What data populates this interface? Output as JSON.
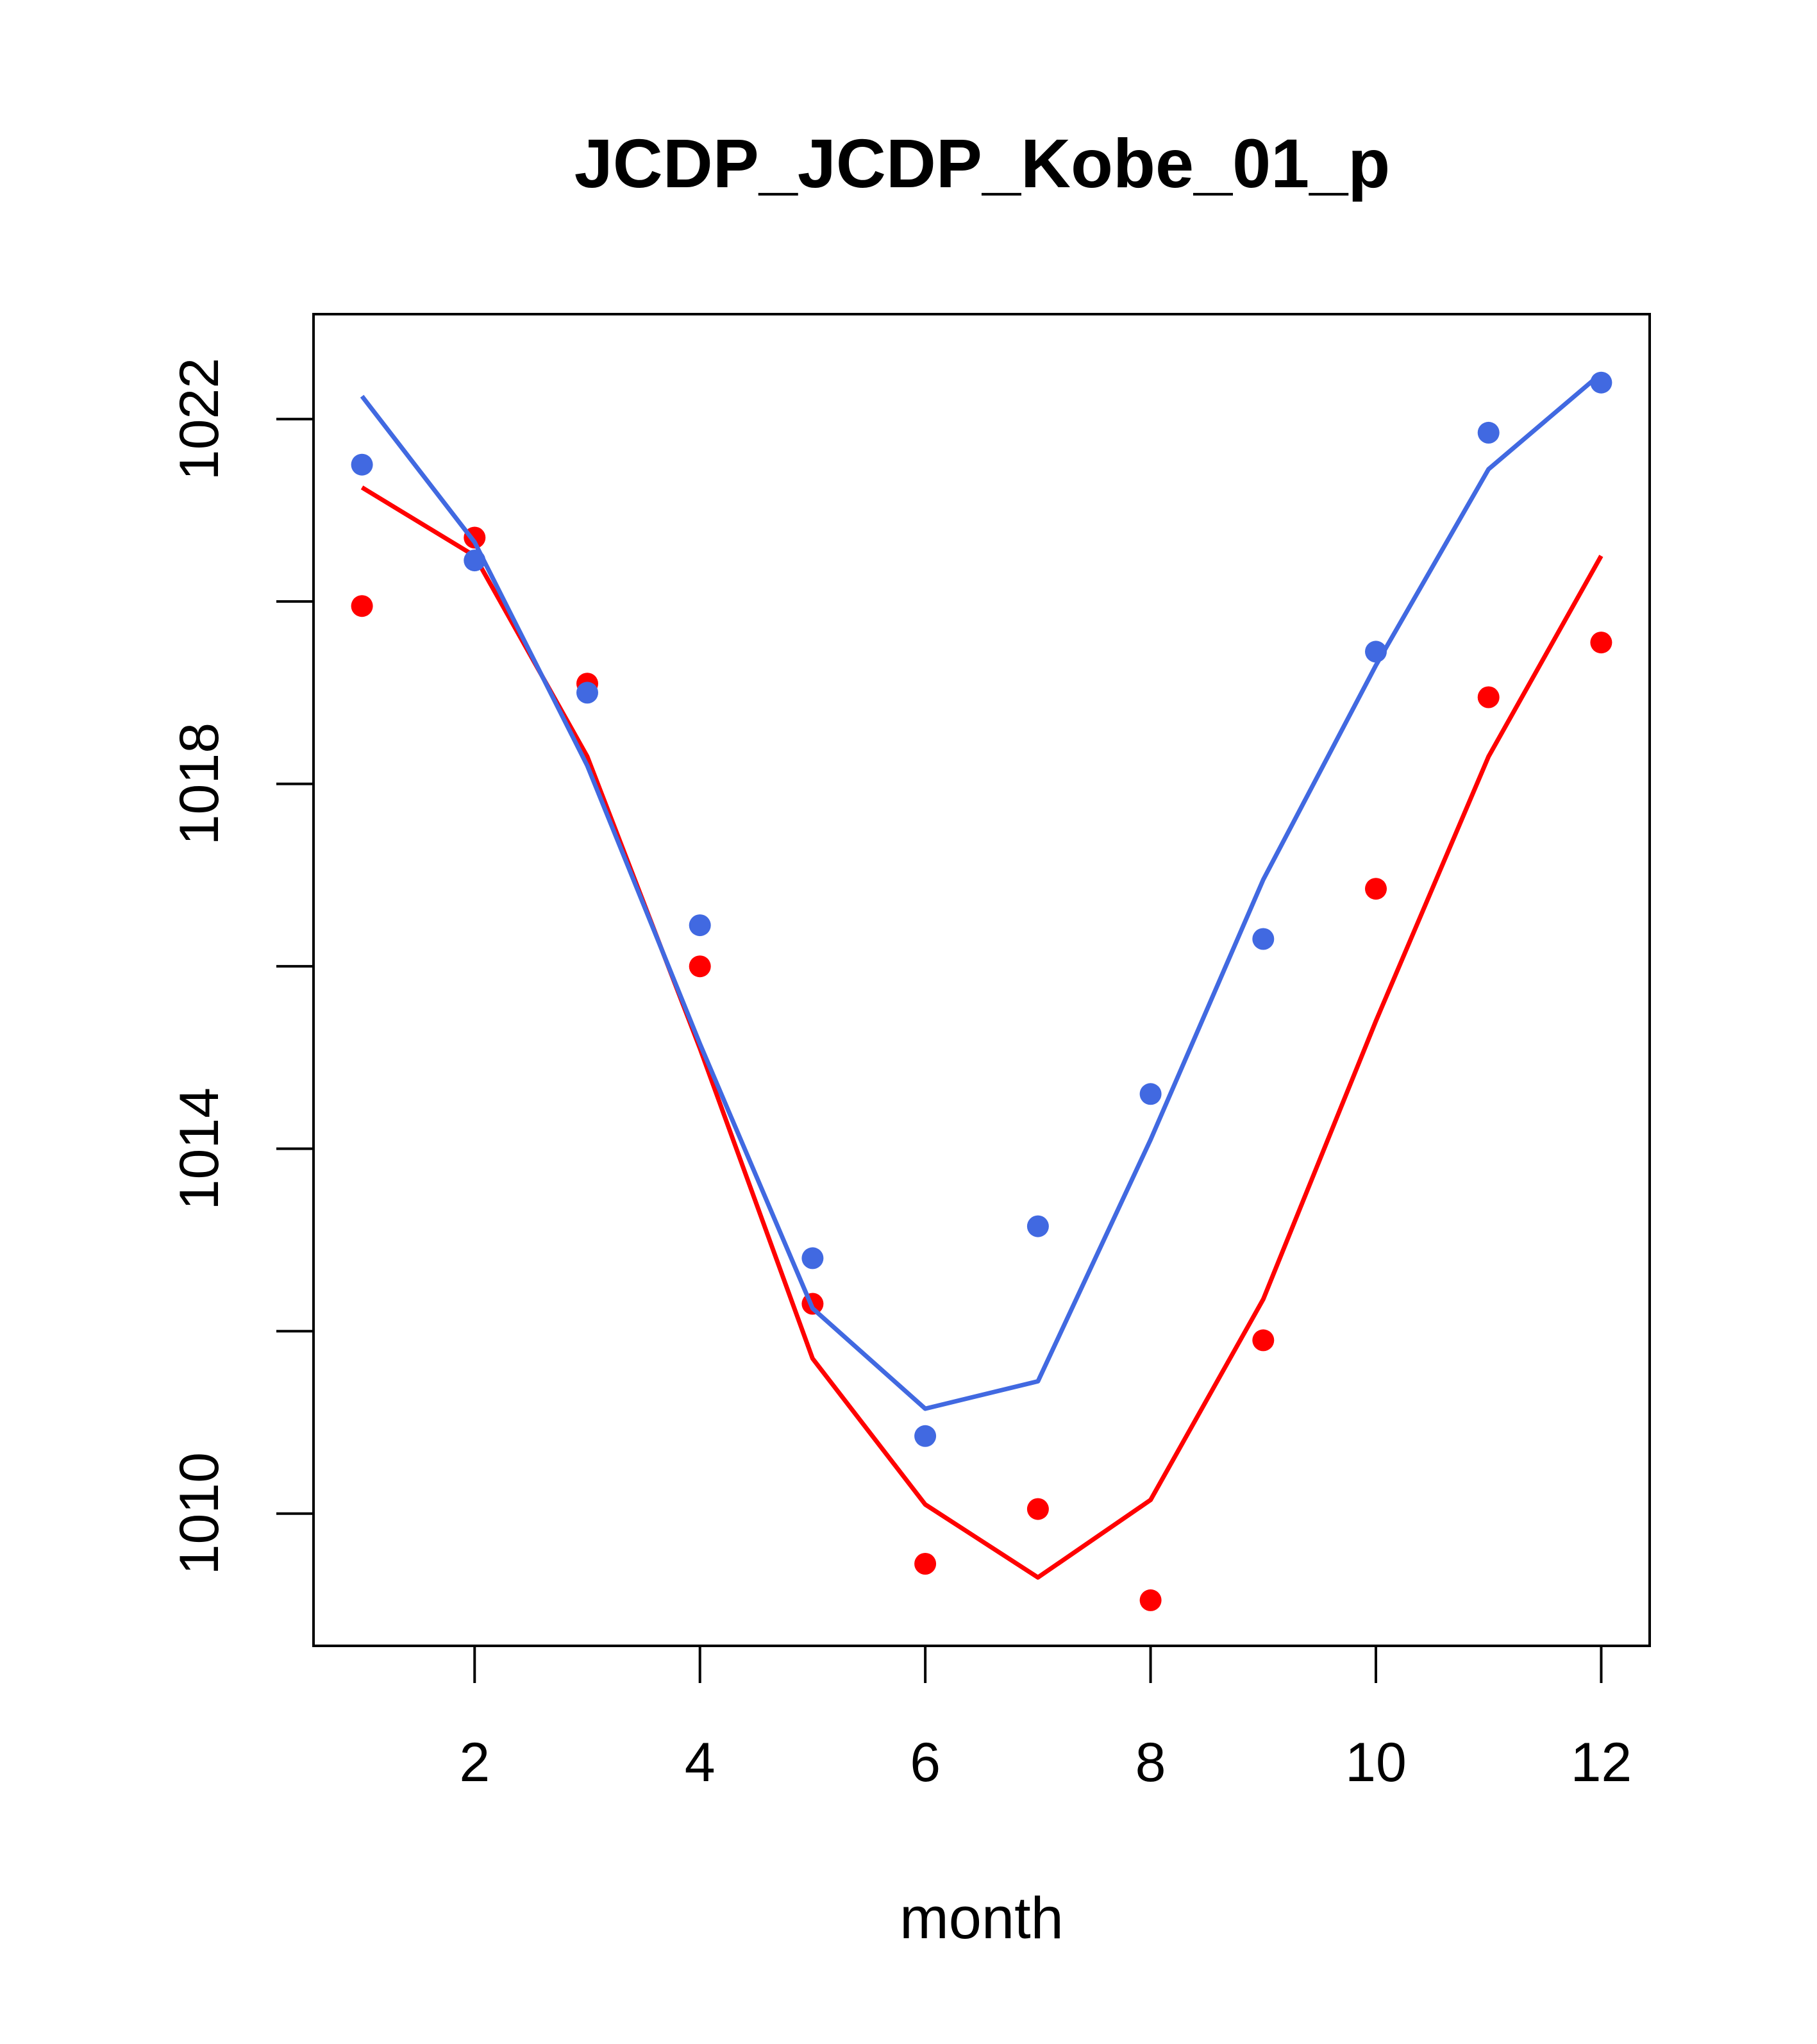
{
  "chart_data": {
    "type": "line",
    "title": "JCDP_JCDP_Kobe_01_p",
    "xlabel": "month",
    "ylabel": "",
    "xlim": [
      0.57,
      12.43
    ],
    "ylim": [
      1008.55,
      1023.15
    ],
    "x_ticks": [
      "2",
      "4",
      "6",
      "8",
      "10",
      "12"
    ],
    "y_ticks": [
      "1010",
      "1014",
      "1018",
      "1022"
    ],
    "grid": false,
    "x": [
      1,
      2,
      3,
      4,
      5,
      6,
      7,
      8,
      9,
      10,
      11,
      12
    ],
    "series": [
      {
        "color": "#ff0000",
        "points": [
          1019.95,
          1020.7,
          1019.1,
          1016.0,
          1012.3,
          1009.45,
          1010.05,
          1009.05,
          1011.9,
          1016.85,
          1018.95,
          1019.55
        ],
        "line": [
          1021.25,
          1020.5,
          1018.3,
          1015.1,
          1011.7,
          1010.1,
          1009.3,
          1010.15,
          1012.35,
          1015.4,
          1018.3,
          1020.5
        ]
      },
      {
        "color": "#4169e1",
        "points": [
          1021.5,
          1020.45,
          1019.0,
          1016.45,
          1012.8,
          1010.85,
          1013.15,
          1014.6,
          1016.3,
          1019.45,
          1021.85,
          1022.4
        ],
        "line": [
          1022.25,
          1020.65,
          1018.2,
          1015.15,
          1012.25,
          1011.15,
          1011.45,
          1014.1,
          1016.95,
          1019.3,
          1021.45,
          1022.5
        ]
      }
    ]
  }
}
